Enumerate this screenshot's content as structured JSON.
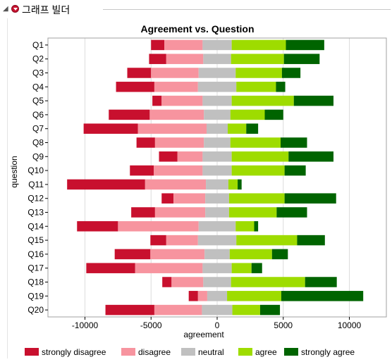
{
  "header": {
    "title": "그래프 빌더",
    "collapse_icon": "triangle-collapse-icon",
    "menu_icon": "red-menu-triangle-icon"
  },
  "chart_data": {
    "type": "diverging-stacked-bar",
    "orientation": "horizontal",
    "title": "Agreement vs. Question",
    "xlabel": "agreement",
    "ylabel": "question",
    "xlim": [
      -12800,
      12800
    ],
    "xticks": [
      -10000,
      -5000,
      0,
      5000,
      10000
    ],
    "grid": true,
    "legend_position": "bottom",
    "categories": [
      "Q1",
      "Q2",
      "Q3",
      "Q4",
      "Q5",
      "Q6",
      "Q7",
      "Q8",
      "Q9",
      "Q10",
      "Q11",
      "Q12",
      "Q13",
      "Q14",
      "Q15",
      "Q16",
      "Q17",
      "Q18",
      "Q19",
      "Q20"
    ],
    "series": [
      {
        "name": "strongly disagree",
        "color": "#c8102e",
        "values": [
          1000,
          1300,
          1800,
          2900,
          700,
          3100,
          4100,
          1400,
          1400,
          1800,
          5900,
          900,
          1800,
          3100,
          1200,
          2700,
          3700,
          700,
          700,
          3700
        ]
      },
      {
        "name": "disagree",
        "color": "#f7949f",
        "values": [
          2900,
          2800,
          3600,
          3300,
          3100,
          4100,
          5200,
          3700,
          1900,
          3700,
          4600,
          2400,
          3800,
          6100,
          2400,
          4100,
          5100,
          2400,
          700,
          3600
        ]
      },
      {
        "name": "neutral",
        "color": "#c0c0c0",
        "values": [
          2200,
          2100,
          2800,
          2900,
          2200,
          2000,
          1600,
          2000,
          2200,
          2200,
          1700,
          1800,
          1800,
          2800,
          2900,
          1900,
          2200,
          2100,
          1500,
          2300
        ]
      },
      {
        "name": "agree",
        "color": "#9edc00",
        "values": [
          4100,
          4000,
          3500,
          3000,
          4700,
          2600,
          1400,
          3800,
          4300,
          4000,
          700,
          4200,
          3600,
          1400,
          4600,
          3200,
          1500,
          5600,
          4100,
          2100
        ]
      },
      {
        "name": "strongly agree",
        "color": "#006400",
        "values": [
          2900,
          2700,
          1400,
          700,
          3000,
          1400,
          900,
          2000,
          3400,
          1600,
          300,
          3900,
          2300,
          300,
          2100,
          1200,
          800,
          2400,
          6200,
          1500
        ]
      }
    ]
  }
}
